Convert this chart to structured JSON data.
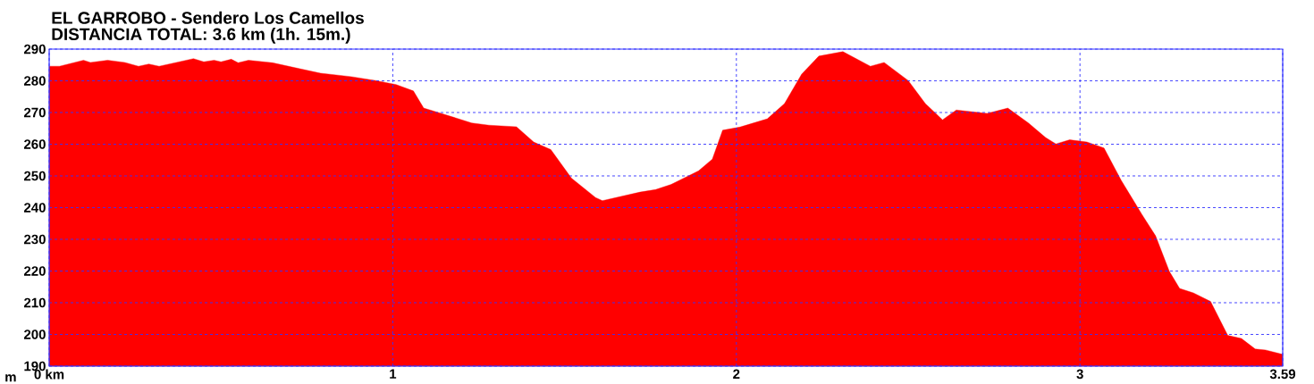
{
  "chart_data": {
    "type": "area",
    "title": "EL GARROBO - Sendero Los Camellos",
    "subtitle": "DISTANCIA TOTAL: 3.6 km (1h. 15m.)",
    "ylabel": "m",
    "x": [
      0,
      0.03,
      0.1,
      0.12,
      0.17,
      0.22,
      0.26,
      0.29,
      0.32,
      0.37,
      0.42,
      0.45,
      0.48,
      0.5,
      0.53,
      0.55,
      0.58,
      0.65,
      0.73,
      0.79,
      0.88,
      0.95,
      1.01,
      1.06,
      1.09,
      1.13,
      1.23,
      1.28,
      1.36,
      1.41,
      1.46,
      1.52,
      1.59,
      1.61,
      1.72,
      1.765,
      1.81,
      1.89,
      1.93,
      1.96,
      2.01,
      2.09,
      2.14,
      2.19,
      2.24,
      2.31,
      2.39,
      2.43,
      2.5,
      2.55,
      2.6,
      2.64,
      2.73,
      2.79,
      2.85,
      2.9,
      2.93,
      2.97,
      3.02,
      3.07,
      3.12,
      3.18,
      3.22,
      3.26,
      3.29,
      3.33,
      3.38,
      3.43,
      3.47,
      3.51,
      3.54,
      3.59
    ],
    "series": [
      {
        "color": "#ff0000",
        "values": [
          284.6,
          284.6,
          286.5,
          285.8,
          286.5,
          285.8,
          284.6,
          285.3,
          284.6,
          285.8,
          287.0,
          286.0,
          286.5,
          286.0,
          286.8,
          285.7,
          286.5,
          285.7,
          283.8,
          282.4,
          281.3,
          280.1,
          278.8,
          276.8,
          271.4,
          270.1,
          266.7,
          266.0,
          265.5,
          260.7,
          258.3,
          249.3,
          243.2,
          242.2,
          244.9,
          245.7,
          247.3,
          251.6,
          255.3,
          264.4,
          265.4,
          268.0,
          272.8,
          282.1,
          287.8,
          289.2,
          284.6,
          285.8,
          280.1,
          272.8,
          267.7,
          270.8,
          269.7,
          271.4,
          266.7,
          262.1,
          260.1,
          261.4,
          260.7,
          258.8,
          248.6,
          237.9,
          231.1,
          219.9,
          214.5,
          213.1,
          210.4,
          199.7,
          198.7,
          195.4,
          195.1,
          193.7
        ]
      }
    ],
    "xlim": [
      0,
      3.59
    ],
    "ylim": [
      190,
      290
    ],
    "xticks": [
      {
        "value": 0,
        "label": "0 km"
      },
      1,
      2,
      3,
      3.59
    ],
    "yticks": [
      190,
      200,
      210,
      220,
      230,
      240,
      250,
      260,
      270,
      280,
      290
    ],
    "grid": true
  }
}
